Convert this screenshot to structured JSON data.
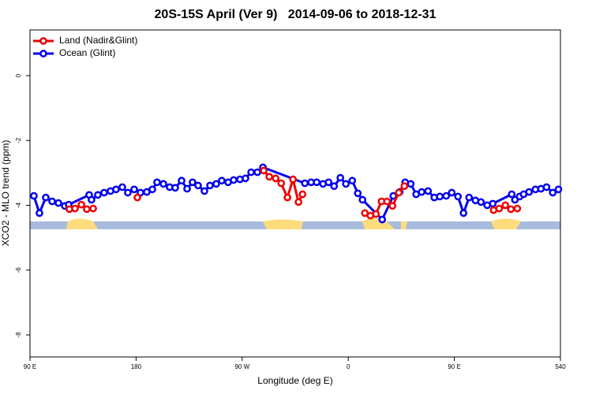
{
  "chart_data": {
    "type": "line",
    "title": "20S-15S April (Ver 9)   2014-09-06 to 2018-12-31",
    "x_label": "Longitude (deg E)",
    "y_label": "XCO2 - MLO trend (ppm)",
    "xlim": [
      90,
      540
    ],
    "ylim": [
      -8.68,
      1.41
    ],
    "xticks": [
      {
        "value": 90,
        "label": "90 E"
      },
      180,
      {
        "value": 270,
        "label": "90 W"
      },
      {
        "value": 360,
        "label": "0"
      },
      {
        "value": 450,
        "label": "90 E"
      },
      540
    ],
    "yticks": [
      0,
      -2,
      -4,
      -6,
      -8
    ],
    "legend": "top-left",
    "series": [
      {
        "name": "Land (Nadir&Glint)",
        "color": "#ee0000",
        "x": [
          123.5,
          128.2,
          133.6,
          138.2,
          143.6,
          null,
          181.1,
          null,
          288.3,
          293.0,
          298.4,
          303.1,
          308.4,
          313.1,
          317.8,
          321.2,
          null,
          374.1,
          378.8,
          383.5,
          388.2,
          392.9,
          397.5,
          402.9,
          407.6,
          null,
          483.3,
          488.0,
          493.3,
          498.0,
          503.4
        ],
        "values": [
          -4.12,
          -4.1,
          -3.98,
          -4.12,
          -4.1,
          null,
          -3.76,
          null,
          -2.93,
          -3.12,
          -3.17,
          -3.32,
          -3.76,
          -3.2,
          -3.9,
          -3.66,
          null,
          -4.24,
          -4.32,
          -4.27,
          -3.88,
          -3.88,
          -4.02,
          -3.61,
          -3.41,
          null,
          -4.15,
          -4.1,
          -4.0,
          -4.12,
          -4.1
        ]
      },
      {
        "name": "Ocean (Glint)",
        "color": "#0000ee",
        "x": [
          93.3,
          98.0,
          103.4,
          108.8,
          114.1,
          119.5,
          122.8,
          140.2,
          142.2,
          147.6,
          152.9,
          158.3,
          163.0,
          168.3,
          173.0,
          178.4,
          183.7,
          189.1,
          193.8,
          197.8,
          203.2,
          208.5,
          213.2,
          218.6,
          223.3,
          227.9,
          232.6,
          238.0,
          242.7,
          248.0,
          252.7,
          258.1,
          262.8,
          268.1,
          272.8,
          277.6,
          282.9,
          287.6,
          323.2,
          328.5,
          333.2,
          338.6,
          343.3,
          348.0,
          353.3,
          358.0,
          363.4,
          368.1,
          372.1,
          388.8,
          398.2,
          403.6,
          408.3,
          413.0,
          417.6,
          422.3,
          427.7,
          433.0,
          437.7,
          443.1,
          447.8,
          453.1,
          457.8,
          462.5,
          467.9,
          472.6,
          477.9,
          482.6,
          498.7,
          501.4,
          505.4,
          508.8,
          513.4,
          518.8,
          523.5,
          528.2,
          533.5,
          538.3
        ],
        "values": [
          -3.71,
          -4.24,
          -3.76,
          -3.88,
          -3.93,
          -4.02,
          -3.98,
          -3.68,
          -3.83,
          -3.68,
          -3.61,
          -3.56,
          -3.51,
          -3.44,
          -3.61,
          -3.51,
          -3.61,
          -3.59,
          -3.51,
          -3.29,
          -3.34,
          -3.44,
          -3.46,
          -3.24,
          -3.49,
          -3.29,
          -3.39,
          -3.56,
          -3.39,
          -3.34,
          -3.24,
          -3.29,
          -3.22,
          -3.2,
          -3.17,
          -2.98,
          -2.98,
          -2.83,
          -3.32,
          -3.29,
          -3.29,
          -3.34,
          -3.29,
          -3.41,
          -3.15,
          -3.34,
          -3.24,
          -3.63,
          -3.83,
          -4.44,
          -3.71,
          -3.59,
          -3.29,
          -3.34,
          -3.66,
          -3.59,
          -3.56,
          -3.76,
          -3.73,
          -3.71,
          -3.61,
          -3.73,
          -4.24,
          -3.76,
          -3.85,
          -3.9,
          -4.0,
          -3.95,
          -3.66,
          -3.83,
          -3.73,
          -3.66,
          -3.59,
          -3.51,
          -3.49,
          -3.44,
          -3.61,
          -3.51
        ]
      }
    ]
  }
}
